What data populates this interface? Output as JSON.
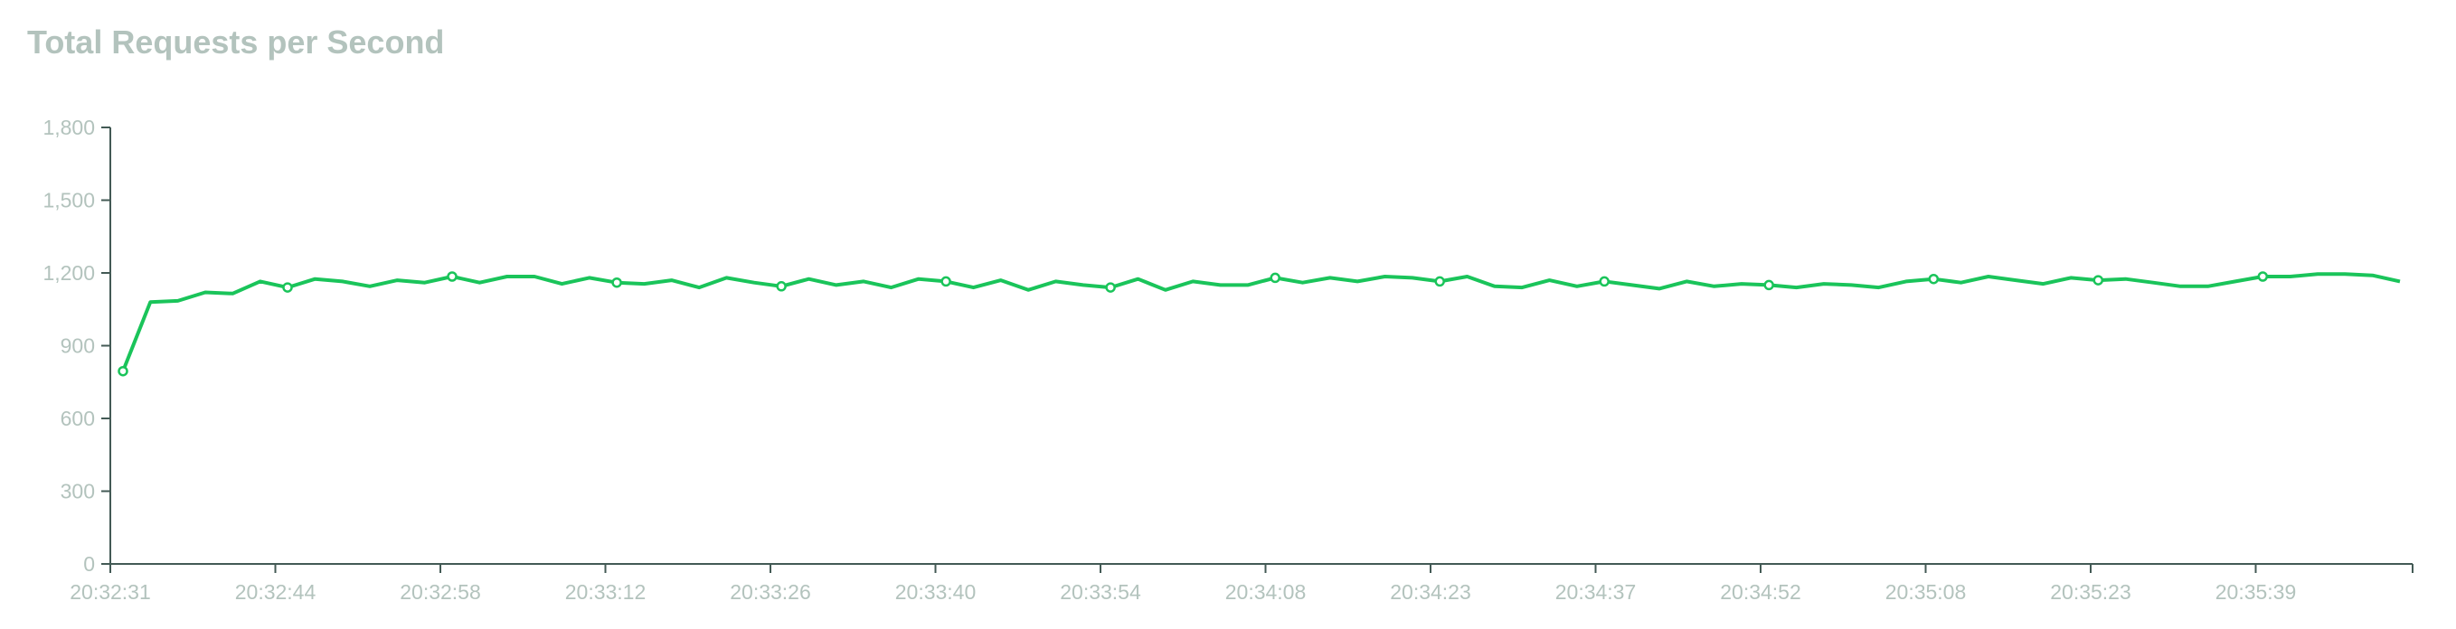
{
  "chart_data": {
    "type": "line",
    "title": "Total Requests per Second",
    "xlabel": "",
    "ylabel": "",
    "ylim": [
      0,
      1800
    ],
    "yticks": [
      "0",
      "300",
      "600",
      "900",
      "1,200",
      "1,500",
      "1,800"
    ],
    "xticks": [
      "20:32:31",
      "20:32:44",
      "20:32:58",
      "20:33:12",
      "20:33:26",
      "20:33:40",
      "20:33:54",
      "20:34:08",
      "20:34:23",
      "20:34:37",
      "20:34:52",
      "20:35:08",
      "20:35:23",
      "20:35:39"
    ],
    "grid": false,
    "color": "#1ac45a",
    "values": [
      795,
      1080,
      1085,
      1120,
      1115,
      1165,
      1140,
      1175,
      1165,
      1145,
      1170,
      1160,
      1185,
      1160,
      1185,
      1185,
      1155,
      1180,
      1160,
      1155,
      1170,
      1140,
      1180,
      1160,
      1145,
      1175,
      1150,
      1165,
      1140,
      1175,
      1165,
      1140,
      1170,
      1130,
      1165,
      1150,
      1140,
      1175,
      1130,
      1165,
      1150,
      1150,
      1180,
      1160,
      1180,
      1165,
      1185,
      1180,
      1165,
      1185,
      1145,
      1140,
      1170,
      1145,
      1165,
      1150,
      1135,
      1165,
      1145,
      1155,
      1150,
      1140,
      1155,
      1150,
      1140,
      1165,
      1175,
      1160,
      1185,
      1170,
      1155,
      1180,
      1170,
      1175,
      1160,
      1145,
      1145,
      1165,
      1185,
      1185,
      1195,
      1195,
      1190,
      1165
    ],
    "marker_every": 6
  }
}
